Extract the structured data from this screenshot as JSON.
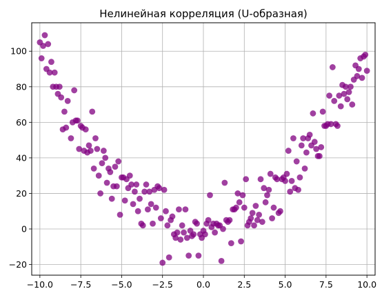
{
  "chart_data": {
    "type": "scatter",
    "title": "Нелинейная корреляция (U-образная)",
    "xlabel": "",
    "ylabel": "",
    "xlim": [
      -10.5,
      10.5
    ],
    "ylim": [
      -26,
      116
    ],
    "grid": true,
    "marker_color": "#800080",
    "marker_opacity": 0.75,
    "x_ticks": [
      -10.0,
      -7.5,
      -5.0,
      -2.5,
      0.0,
      2.5,
      5.0,
      7.5,
      10.0
    ],
    "x_tick_labels": [
      "−10.0",
      "−7.5",
      "−5.0",
      "−2.5",
      "0.0",
      "2.5",
      "5.0",
      "7.5",
      "10.0"
    ],
    "y_ticks": [
      -20,
      0,
      20,
      40,
      60,
      80,
      100
    ],
    "y_tick_labels": [
      "−20",
      "0",
      "20",
      "40",
      "60",
      "80",
      "100"
    ],
    "points": [
      [
        -10.0,
        105
      ],
      [
        -9.9,
        96
      ],
      [
        -9.8,
        103
      ],
      [
        -9.7,
        109
      ],
      [
        -9.6,
        90
      ],
      [
        -9.5,
        104
      ],
      [
        -9.4,
        88
      ],
      [
        -9.3,
        94
      ],
      [
        -9.2,
        80
      ],
      [
        -9.1,
        88
      ],
      [
        -9.0,
        80
      ],
      [
        -8.9,
        76
      ],
      [
        -8.8,
        80
      ],
      [
        -8.7,
        74
      ],
      [
        -8.6,
        56
      ],
      [
        -8.5,
        66
      ],
      [
        -8.4,
        57
      ],
      [
        -8.3,
        72
      ],
      [
        -8.1,
        51
      ],
      [
        -8.0,
        60
      ],
      [
        -7.9,
        78
      ],
      [
        -7.8,
        61
      ],
      [
        -7.7,
        61
      ],
      [
        -7.6,
        45
      ],
      [
        -7.5,
        58
      ],
      [
        -7.4,
        57
      ],
      [
        -7.3,
        44
      ],
      [
        -7.2,
        56
      ],
      [
        -7.1,
        43
      ],
      [
        -7.0,
        47
      ],
      [
        -6.9,
        44
      ],
      [
        -6.8,
        66
      ],
      [
        -6.7,
        34
      ],
      [
        -6.6,
        51
      ],
      [
        -6.5,
        45
      ],
      [
        -6.4,
        30
      ],
      [
        -6.3,
        20
      ],
      [
        -6.2,
        37
      ],
      [
        -6.1,
        44
      ],
      [
        -6.0,
        40
      ],
      [
        -5.9,
        26
      ],
      [
        -5.8,
        34
      ],
      [
        -5.7,
        32
      ],
      [
        -5.6,
        17
      ],
      [
        -5.5,
        24
      ],
      [
        -5.4,
        35
      ],
      [
        -5.3,
        24
      ],
      [
        -5.2,
        38
      ],
      [
        -5.1,
        8
      ],
      [
        -5.0,
        29
      ],
      [
        -4.9,
        29
      ],
      [
        -4.8,
        16
      ],
      [
        -4.7,
        28
      ],
      [
        -4.6,
        23
      ],
      [
        -4.5,
        30
      ],
      [
        -4.4,
        25
      ],
      [
        -4.3,
        14
      ],
      [
        -4.2,
        21
      ],
      [
        -4.1,
        25
      ],
      [
        -4.0,
        10
      ],
      [
        -3.9,
        17
      ],
      [
        -3.8,
        3
      ],
      [
        -3.7,
        2
      ],
      [
        -3.6,
        21
      ],
      [
        -3.5,
        25
      ],
      [
        -3.4,
        11
      ],
      [
        -3.3,
        21
      ],
      [
        -3.2,
        14
      ],
      [
        -3.1,
        3
      ],
      [
        -3.0,
        22
      ],
      [
        -2.9,
        12
      ],
      [
        -2.8,
        24
      ],
      [
        -2.7,
        23
      ],
      [
        -2.6,
        6
      ],
      [
        -2.5,
        -19
      ],
      [
        -2.4,
        22
      ],
      [
        -2.3,
        10
      ],
      [
        -2.2,
        2
      ],
      [
        -2.1,
        -16
      ],
      [
        -2.0,
        5
      ],
      [
        -1.9,
        7
      ],
      [
        -1.8,
        -3
      ],
      [
        -1.7,
        -5
      ],
      [
        -1.6,
        -2
      ],
      [
        -1.5,
        11
      ],
      [
        -1.4,
        -6
      ],
      [
        -1.3,
        2
      ],
      [
        -1.2,
        -2
      ],
      [
        -1.1,
        11
      ],
      [
        -1.0,
        -5
      ],
      [
        -0.9,
        -15
      ],
      [
        -0.8,
        -1
      ],
      [
        -0.7,
        -4
      ],
      [
        -0.6,
        -3
      ],
      [
        -0.5,
        4
      ],
      [
        -0.4,
        3
      ],
      [
        -0.3,
        -15
      ],
      [
        -0.2,
        -3
      ],
      [
        -0.1,
        -5
      ],
      [
        0.0,
        -1
      ],
      [
        0.1,
        -3
      ],
      [
        0.2,
        3
      ],
      [
        0.3,
        5
      ],
      [
        0.4,
        19
      ],
      [
        0.5,
        1
      ],
      [
        0.6,
        3
      ],
      [
        0.7,
        -2
      ],
      [
        0.8,
        3
      ],
      [
        0.9,
        2
      ],
      [
        1.0,
        2
      ],
      [
        1.1,
        -18
      ],
      [
        1.2,
        0
      ],
      [
        1.3,
        26
      ],
      [
        1.4,
        5
      ],
      [
        1.5,
        4
      ],
      [
        1.6,
        5
      ],
      [
        1.7,
        -8
      ],
      [
        1.8,
        11
      ],
      [
        1.9,
        11
      ],
      [
        2.0,
        12
      ],
      [
        2.1,
        20
      ],
      [
        2.2,
        15
      ],
      [
        2.3,
        -7
      ],
      [
        2.4,
        19
      ],
      [
        2.5,
        12
      ],
      [
        2.6,
        28
      ],
      [
        2.7,
        2
      ],
      [
        2.8,
        4
      ],
      [
        2.9,
        6
      ],
      [
        3.0,
        9
      ],
      [
        3.1,
        2
      ],
      [
        3.2,
        13
      ],
      [
        3.3,
        5
      ],
      [
        3.4,
        8
      ],
      [
        3.5,
        28
      ],
      [
        3.6,
        4
      ],
      [
        3.7,
        23
      ],
      [
        3.8,
        15
      ],
      [
        3.9,
        19
      ],
      [
        4.0,
        22
      ],
      [
        4.1,
        31
      ],
      [
        4.2,
        6
      ],
      [
        4.3,
        12
      ],
      [
        4.4,
        29
      ],
      [
        4.5,
        28
      ],
      [
        4.6,
        9
      ],
      [
        4.7,
        10
      ],
      [
        4.8,
        28
      ],
      [
        4.9,
        29
      ],
      [
        5.0,
        27
      ],
      [
        5.1,
        31
      ],
      [
        5.2,
        44
      ],
      [
        5.3,
        21
      ],
      [
        5.4,
        27
      ],
      [
        5.5,
        51
      ],
      [
        5.6,
        23
      ],
      [
        5.7,
        38
      ],
      [
        5.8,
        22
      ],
      [
        5.9,
        29
      ],
      [
        6.0,
        47
      ],
      [
        6.1,
        51
      ],
      [
        6.2,
        34
      ],
      [
        6.3,
        43
      ],
      [
        6.4,
        51
      ],
      [
        6.5,
        53
      ],
      [
        6.6,
        47
      ],
      [
        6.7,
        65
      ],
      [
        6.8,
        49
      ],
      [
        6.9,
        45
      ],
      [
        7.0,
        41
      ],
      [
        7.1,
        41
      ],
      [
        7.2,
        46
      ],
      [
        7.3,
        66
      ],
      [
        7.4,
        58
      ],
      [
        7.5,
        58
      ],
      [
        7.6,
        59
      ],
      [
        7.7,
        75
      ],
      [
        7.8,
        59
      ],
      [
        7.9,
        91
      ],
      [
        8.0,
        72
      ],
      [
        8.1,
        59
      ],
      [
        8.2,
        58
      ],
      [
        8.3,
        75
      ],
      [
        8.4,
        69
      ],
      [
        8.5,
        81
      ],
      [
        8.6,
        76
      ],
      [
        8.7,
        80
      ],
      [
        8.8,
        73
      ],
      [
        8.9,
        77
      ],
      [
        9.0,
        80
      ],
      [
        9.1,
        70
      ],
      [
        9.2,
        84
      ],
      [
        9.3,
        92
      ],
      [
        9.4,
        86
      ],
      [
        9.5,
        90
      ],
      [
        9.6,
        96
      ],
      [
        9.7,
        85
      ],
      [
        9.8,
        97
      ],
      [
        9.9,
        98
      ],
      [
        10.0,
        89
      ]
    ]
  }
}
